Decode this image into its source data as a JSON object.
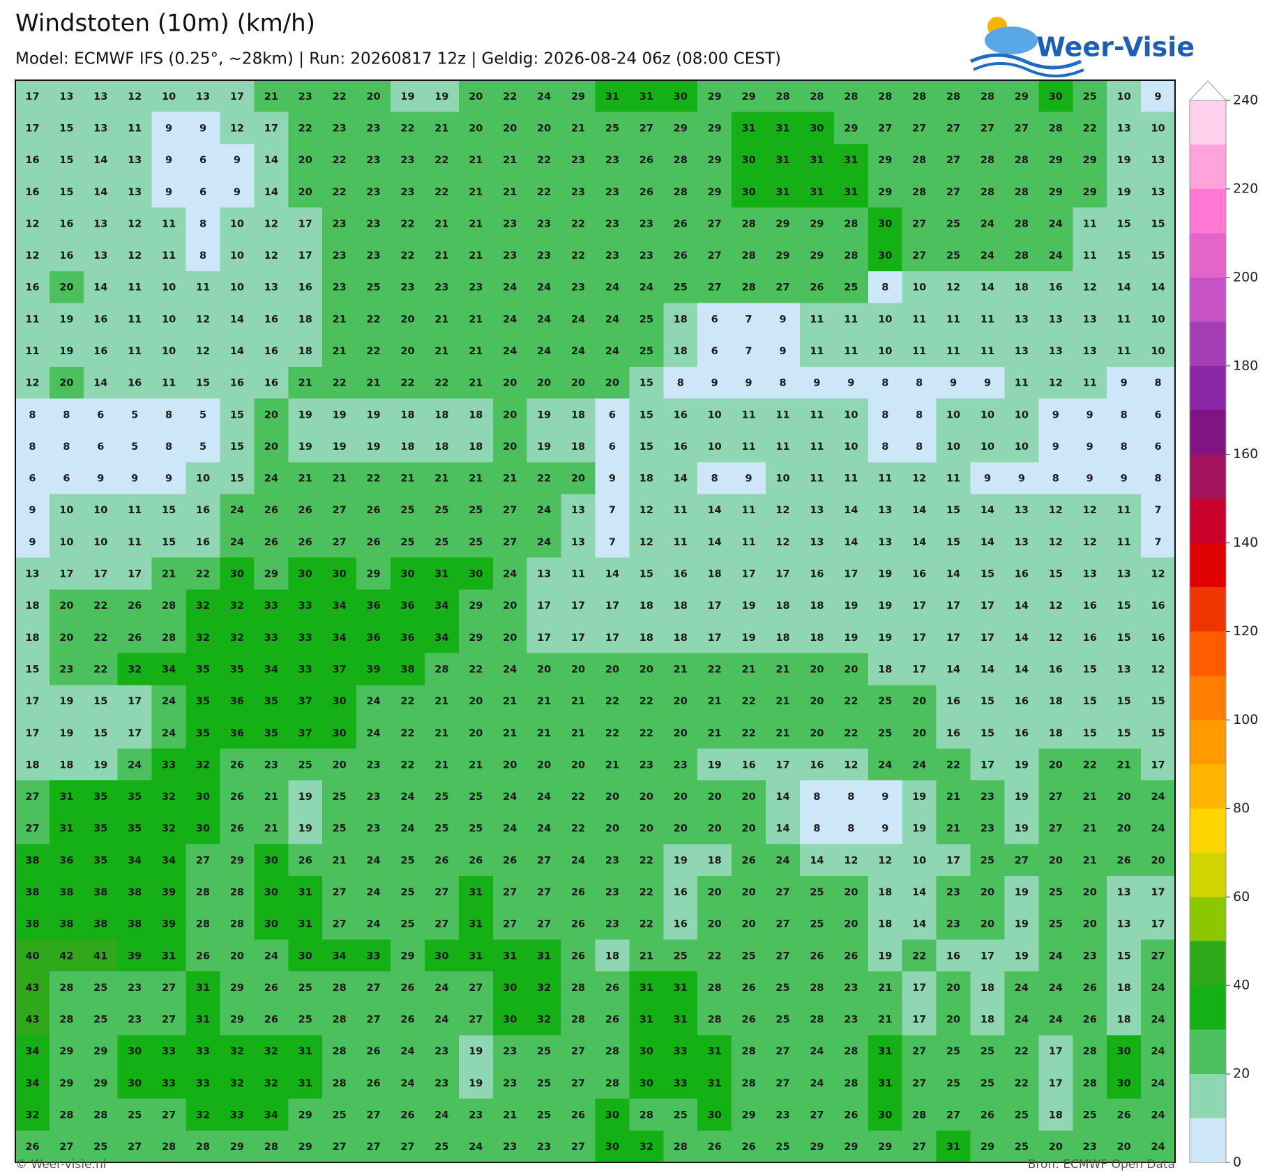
{
  "header": {
    "title": "Windstoten (10m) (km/h)",
    "subtitle": "Model: ECMWF IFS (0.25°, ~28km)  |  Run: 20260817 12z  |  Geldig: 2026-08-24 06z (08:00 CEST)",
    "logo": "Weer-Visie"
  },
  "footer": {
    "left": "© Weer-visie.nl",
    "right": "Bron: ECMWF Open Data"
  },
  "colorbar": {
    "levels": [
      0,
      10,
      20,
      30,
      40,
      50,
      60,
      70,
      80,
      90,
      100,
      110,
      120,
      130,
      140,
      150,
      160,
      170,
      180,
      190,
      200,
      210,
      220,
      230,
      240
    ],
    "colors": [
      "#cde6f8",
      "#8fd6b2",
      "#4cc05c",
      "#14b016",
      "#2fa91a",
      "#8cc800",
      "#d2d400",
      "#ffd500",
      "#ffb400",
      "#ff9a00",
      "#ff7d00",
      "#ff5c00",
      "#ee3400",
      "#df0000",
      "#c8002c",
      "#a3125c",
      "#7f1482",
      "#8b27a6",
      "#a43db6",
      "#c652c6",
      "#e465c9",
      "#ff79d4",
      "#ffa3dd",
      "#ffcfec"
    ],
    "ticks": [
      0,
      20,
      40,
      60,
      80,
      100,
      120,
      140,
      160,
      180,
      200,
      220,
      240
    ]
  },
  "grid": {
    "rows": [
      [
        17,
        13,
        13,
        12,
        10,
        13,
        17,
        21,
        23,
        22,
        20,
        19,
        19,
        20,
        22,
        24,
        29,
        31,
        31,
        30,
        29,
        29,
        28,
        28,
        28,
        28,
        28,
        28,
        28,
        29,
        30,
        25,
        10,
        9
      ],
      [
        17,
        15,
        13,
        11,
        9,
        9,
        12,
        17,
        22,
        23,
        23,
        22,
        21,
        20,
        20,
        20,
        21,
        25,
        27,
        29,
        29,
        31,
        31,
        30,
        29,
        27,
        27,
        27,
        27,
        27,
        28,
        22,
        13,
        10
      ],
      [
        16,
        15,
        14,
        13,
        9,
        6,
        9,
        14,
        20,
        22,
        23,
        23,
        22,
        21,
        21,
        22,
        23,
        23,
        26,
        28,
        29,
        30,
        31,
        31,
        31,
        29,
        28,
        27,
        28,
        28,
        29,
        29,
        19,
        13
      ],
      [
        16,
        15,
        14,
        13,
        9,
        6,
        9,
        14,
        20,
        22,
        23,
        23,
        22,
        21,
        21,
        22,
        23,
        23,
        26,
        28,
        29,
        30,
        31,
        31,
        31,
        29,
        28,
        27,
        28,
        28,
        29,
        29,
        19,
        13
      ],
      [
        12,
        16,
        13,
        12,
        11,
        8,
        10,
        12,
        17,
        23,
        23,
        22,
        21,
        21,
        23,
        23,
        22,
        23,
        23,
        26,
        27,
        28,
        29,
        29,
        28,
        30,
        27,
        25,
        24,
        28,
        24,
        11,
        15,
        15
      ],
      [
        12,
        16,
        13,
        12,
        11,
        8,
        10,
        12,
        17,
        23,
        23,
        22,
        21,
        21,
        23,
        23,
        22,
        23,
        23,
        26,
        27,
        28,
        29,
        29,
        28,
        30,
        27,
        25,
        24,
        28,
        24,
        11,
        15,
        15
      ],
      [
        16,
        20,
        14,
        11,
        10,
        11,
        10,
        13,
        16,
        23,
        25,
        23,
        23,
        23,
        24,
        24,
        23,
        24,
        24,
        25,
        27,
        28,
        27,
        26,
        25,
        8,
        10,
        12,
        14,
        18,
        16,
        12,
        14,
        14
      ],
      [
        11,
        19,
        16,
        11,
        10,
        12,
        14,
        16,
        18,
        21,
        22,
        20,
        21,
        21,
        24,
        24,
        24,
        24,
        25,
        18,
        6,
        7,
        9,
        11,
        11,
        10,
        11,
        11,
        11,
        13,
        13,
        13,
        11,
        10
      ],
      [
        11,
        19,
        16,
        11,
        10,
        12,
        14,
        16,
        18,
        21,
        22,
        20,
        21,
        21,
        24,
        24,
        24,
        24,
        25,
        18,
        6,
        7,
        9,
        11,
        11,
        10,
        11,
        11,
        11,
        13,
        13,
        13,
        11,
        10
      ],
      [
        12,
        20,
        14,
        16,
        11,
        15,
        16,
        16,
        21,
        22,
        21,
        22,
        22,
        21,
        20,
        20,
        20,
        20,
        15,
        8,
        9,
        9,
        8,
        9,
        9,
        8,
        8,
        9,
        9,
        11,
        12,
        11,
        9,
        8
      ],
      [
        8,
        8,
        6,
        5,
        8,
        5,
        15,
        20,
        19,
        19,
        19,
        18,
        18,
        18,
        20,
        19,
        18,
        6,
        15,
        16,
        10,
        11,
        11,
        11,
        10,
        8,
        8,
        10,
        10,
        10,
        9,
        9,
        8,
        6
      ],
      [
        8,
        8,
        6,
        5,
        8,
        5,
        15,
        20,
        19,
        19,
        19,
        18,
        18,
        18,
        20,
        19,
        18,
        6,
        15,
        16,
        10,
        11,
        11,
        11,
        10,
        8,
        8,
        10,
        10,
        10,
        9,
        9,
        8,
        6
      ],
      [
        6,
        6,
        9,
        9,
        9,
        10,
        15,
        24,
        21,
        21,
        22,
        21,
        21,
        21,
        21,
        22,
        20,
        9,
        18,
        14,
        8,
        9,
        10,
        11,
        11,
        11,
        12,
        11,
        9,
        9,
        8,
        9,
        9,
        8
      ],
      [
        9,
        10,
        10,
        11,
        15,
        16,
        24,
        26,
        26,
        27,
        26,
        25,
        25,
        25,
        27,
        24,
        13,
        7,
        12,
        11,
        14,
        11,
        12,
        13,
        14,
        13,
        14,
        15,
        14,
        13,
        12,
        12,
        11,
        7
      ],
      [
        9,
        10,
        10,
        11,
        15,
        16,
        24,
        26,
        26,
        27,
        26,
        25,
        25,
        25,
        27,
        24,
        13,
        7,
        12,
        11,
        14,
        11,
        12,
        13,
        14,
        13,
        14,
        15,
        14,
        13,
        12,
        12,
        11,
        7
      ],
      [
        13,
        17,
        17,
        17,
        21,
        22,
        30,
        29,
        30,
        30,
        29,
        30,
        31,
        30,
        24,
        13,
        11,
        14,
        15,
        16,
        18,
        17,
        17,
        16,
        17,
        19,
        16,
        14,
        15,
        16,
        15,
        13,
        13,
        12
      ],
      [
        18,
        20,
        22,
        26,
        28,
        32,
        32,
        33,
        33,
        34,
        36,
        36,
        34,
        29,
        20,
        17,
        17,
        17,
        18,
        18,
        17,
        19,
        18,
        18,
        19,
        19,
        17,
        17,
        17,
        14,
        12,
        16,
        15,
        16
      ],
      [
        18,
        20,
        22,
        26,
        28,
        32,
        32,
        33,
        33,
        34,
        36,
        36,
        34,
        29,
        20,
        17,
        17,
        17,
        18,
        18,
        17,
        19,
        18,
        18,
        19,
        19,
        17,
        17,
        17,
        14,
        12,
        16,
        15,
        16
      ],
      [
        15,
        23,
        22,
        32,
        34,
        35,
        35,
        34,
        33,
        37,
        39,
        38,
        28,
        22,
        24,
        20,
        20,
        20,
        20,
        21,
        22,
        21,
        21,
        20,
        20,
        18,
        17,
        14,
        14,
        14,
        16,
        15,
        13,
        12
      ],
      [
        17,
        19,
        15,
        17,
        24,
        35,
        36,
        35,
        37,
        30,
        24,
        22,
        21,
        20,
        21,
        21,
        21,
        22,
        22,
        20,
        21,
        22,
        21,
        20,
        22,
        25,
        20,
        16,
        15,
        16,
        18,
        15,
        15,
        15
      ],
      [
        17,
        19,
        15,
        17,
        24,
        35,
        36,
        35,
        37,
        30,
        24,
        22,
        21,
        20,
        21,
        21,
        21,
        22,
        22,
        20,
        21,
        22,
        21,
        20,
        22,
        25,
        20,
        16,
        15,
        16,
        18,
        15,
        15,
        15
      ],
      [
        18,
        18,
        19,
        24,
        33,
        32,
        26,
        23,
        25,
        20,
        23,
        22,
        21,
        21,
        20,
        20,
        20,
        21,
        23,
        23,
        19,
        16,
        17,
        16,
        12,
        24,
        24,
        22,
        17,
        19,
        20,
        22,
        21,
        17
      ],
      [
        27,
        31,
        35,
        35,
        32,
        30,
        26,
        21,
        19,
        25,
        23,
        24,
        25,
        25,
        24,
        24,
        22,
        20,
        20,
        20,
        20,
        20,
        14,
        8,
        8,
        9,
        19,
        21,
        23,
        19,
        27,
        21,
        20,
        24
      ],
      [
        27,
        31,
        35,
        35,
        32,
        30,
        26,
        21,
        19,
        25,
        23,
        24,
        25,
        25,
        24,
        24,
        22,
        20,
        20,
        20,
        20,
        20,
        14,
        8,
        8,
        9,
        19,
        21,
        23,
        19,
        27,
        21,
        20,
        24
      ],
      [
        38,
        36,
        35,
        34,
        34,
        27,
        29,
        30,
        26,
        21,
        24,
        25,
        26,
        26,
        26,
        27,
        24,
        23,
        22,
        19,
        18,
        26,
        24,
        14,
        12,
        12,
        10,
        17,
        25,
        27,
        20,
        21,
        26,
        20
      ],
      [
        38,
        38,
        38,
        38,
        39,
        28,
        28,
        30,
        31,
        27,
        24,
        25,
        27,
        31,
        27,
        27,
        26,
        23,
        22,
        16,
        20,
        20,
        27,
        25,
        20,
        18,
        14,
        23,
        20,
        19,
        25,
        20,
        13,
        17
      ],
      [
        38,
        38,
        38,
        38,
        39,
        28,
        28,
        30,
        31,
        27,
        24,
        25,
        27,
        31,
        27,
        27,
        26,
        23,
        22,
        16,
        20,
        20,
        27,
        25,
        20,
        18,
        14,
        23,
        20,
        19,
        25,
        20,
        13,
        17
      ],
      [
        40,
        42,
        41,
        39,
        31,
        26,
        20,
        24,
        30,
        34,
        33,
        29,
        30,
        31,
        31,
        31,
        26,
        18,
        21,
        25,
        22,
        25,
        27,
        26,
        26,
        19,
        22,
        16,
        17,
        19,
        24,
        23,
        15,
        27
      ],
      [
        43,
        28,
        25,
        23,
        27,
        31,
        29,
        26,
        25,
        28,
        27,
        26,
        24,
        27,
        30,
        32,
        28,
        26,
        31,
        31,
        28,
        26,
        25,
        28,
        23,
        21,
        17,
        20,
        18,
        24,
        24,
        26,
        18,
        24
      ],
      [
        43,
        28,
        25,
        23,
        27,
        31,
        29,
        26,
        25,
        28,
        27,
        26,
        24,
        27,
        30,
        32,
        28,
        26,
        31,
        31,
        28,
        26,
        25,
        28,
        23,
        21,
        17,
        20,
        18,
        24,
        24,
        26,
        18,
        24
      ],
      [
        34,
        29,
        29,
        30,
        33,
        33,
        32,
        32,
        31,
        28,
        26,
        24,
        23,
        19,
        23,
        25,
        27,
        28,
        30,
        33,
        31,
        28,
        27,
        24,
        28,
        31,
        27,
        25,
        25,
        22,
        17,
        28,
        30,
        24
      ],
      [
        34,
        29,
        29,
        30,
        33,
        33,
        32,
        32,
        31,
        28,
        26,
        24,
        23,
        19,
        23,
        25,
        27,
        28,
        30,
        33,
        31,
        28,
        27,
        24,
        28,
        31,
        27,
        25,
        25,
        22,
        17,
        28,
        30,
        24
      ],
      [
        32,
        28,
        28,
        25,
        27,
        32,
        33,
        34,
        29,
        25,
        27,
        26,
        24,
        23,
        21,
        25,
        26,
        30,
        28,
        25,
        30,
        29,
        23,
        27,
        26,
        30,
        28,
        27,
        26,
        25,
        18,
        25,
        26,
        24
      ],
      [
        26,
        27,
        25,
        27,
        28,
        28,
        29,
        28,
        29,
        27,
        27,
        27,
        25,
        24,
        23,
        23,
        27,
        30,
        32,
        28,
        26,
        26,
        25,
        29,
        29,
        29,
        27,
        31,
        29,
        25,
        20,
        23,
        20,
        24
      ]
    ]
  }
}
